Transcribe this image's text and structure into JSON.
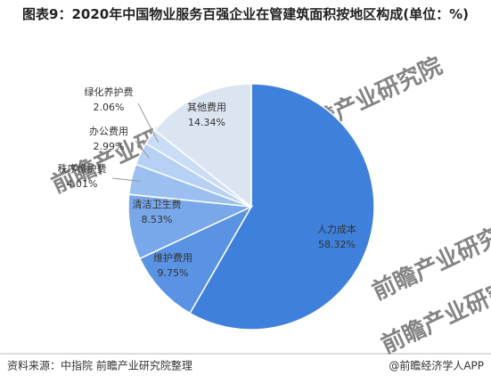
{
  "chart_data": {
    "type": "pie",
    "title": "图表9：2020年中国物业服务百强企业在管建筑面积按地区构成(单位：%)",
    "categories": [
      "人力成本",
      "维护费用",
      "清洁卫生费",
      "秩序维护费",
      "办公费用",
      "绿化养护费",
      "其他费用"
    ],
    "values": [
      58.32,
      9.75,
      8.53,
      4.01,
      2.99,
      2.06,
      14.34
    ],
    "value_labels": [
      "58.32%",
      "9.75%",
      "8.53%",
      "4.01%",
      "2.99%",
      "2.06%",
      "14.34%"
    ],
    "colors": [
      "#3f80dc",
      "#5a93e4",
      "#78a8ea",
      "#9bc0f0",
      "#b6d1f4",
      "#c9ddf6",
      "#dbe5f1"
    ],
    "source": "资料来源：中指院 前瞻产业研究院整理",
    "credit": "@前瞻经济学人APP",
    "watermark": "前瞻产业研究院"
  }
}
